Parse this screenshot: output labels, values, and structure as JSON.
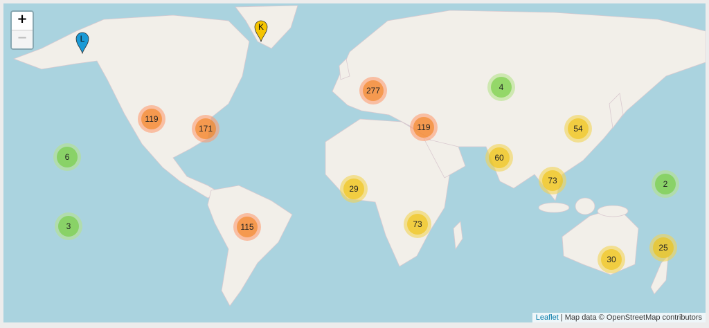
{
  "zoom_controls": {
    "zoom_in": "+",
    "zoom_out": "−"
  },
  "colors": {
    "water": "#aad3df",
    "land": "#f2efe9",
    "small": "#6ecc39",
    "medium": "#f0c20c",
    "large": "#f18017"
  },
  "clusters": [
    {
      "count": "119",
      "size": "large"
    },
    {
      "count": "171",
      "size": "large"
    },
    {
      "count": "6",
      "size": "small"
    },
    {
      "count": "3",
      "size": "small"
    },
    {
      "count": "115",
      "size": "large"
    },
    {
      "count": "29",
      "size": "medium"
    },
    {
      "count": "277",
      "size": "large"
    },
    {
      "count": "119",
      "size": "large"
    },
    {
      "count": "4",
      "size": "small"
    },
    {
      "count": "54",
      "size": "medium"
    },
    {
      "count": "60",
      "size": "medium"
    },
    {
      "count": "73",
      "size": "medium"
    },
    {
      "count": "2",
      "size": "small"
    },
    {
      "count": "73",
      "size": "medium"
    },
    {
      "count": "25",
      "size": "medium"
    },
    {
      "count": "30",
      "size": "medium"
    }
  ],
  "markers": [
    {
      "label": "L",
      "color": "#1a9ad6",
      "icon": "map-pin-icon"
    },
    {
      "label": "K",
      "color": "#f5c400",
      "icon": "map-pin-icon"
    }
  ],
  "attribution": {
    "link": "Leaflet",
    "separator": " | ",
    "text": "Map data © OpenStreetMap contributors"
  }
}
